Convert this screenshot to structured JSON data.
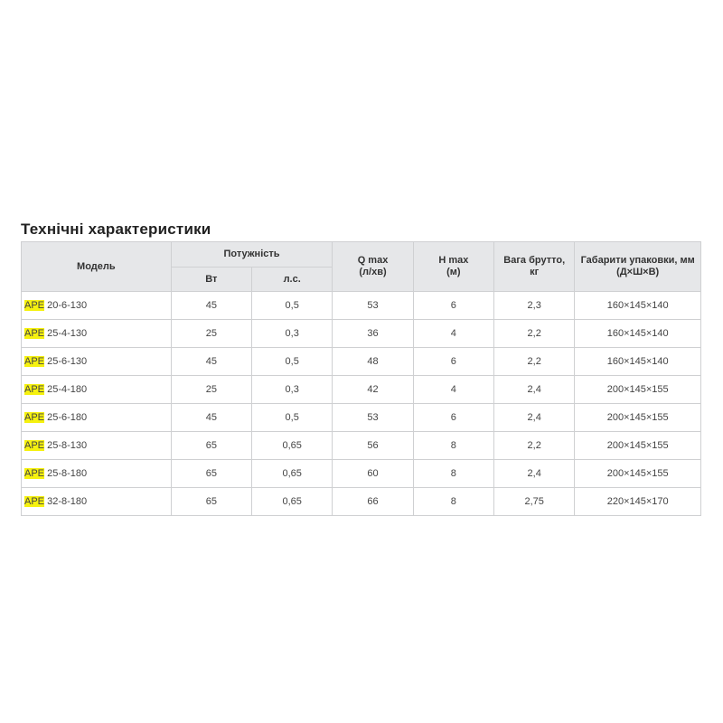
{
  "title": "Технічні характеристики",
  "headers": {
    "model": "Модель",
    "power": "Потужність",
    "watt": "Вт",
    "hp": "л.с.",
    "qmax": "Q max",
    "qmax_unit": "(л/хв)",
    "hmax": "H max",
    "hmax_unit": "(м)",
    "weight": "Вага брутто,",
    "weight_unit": "кг",
    "dims": "Габарити упаковки, мм",
    "dims_unit": "(Д×Ш×В)"
  },
  "highlight_color": "#f5f10f",
  "rows": [
    {
      "prefix": "APE",
      "model": "20-6-130",
      "w": "45",
      "hp": "0,5",
      "q": "53",
      "h": "6",
      "kg": "2,3",
      "dims": "160×145×140"
    },
    {
      "prefix": "APE",
      "model": "25-4-130",
      "w": "25",
      "hp": "0,3",
      "q": "36",
      "h": "4",
      "kg": "2,2",
      "dims": "160×145×140"
    },
    {
      "prefix": "APE",
      "model": "25-6-130",
      "w": "45",
      "hp": "0,5",
      "q": "48",
      "h": "6",
      "kg": "2,2",
      "dims": "160×145×140"
    },
    {
      "prefix": "APE",
      "model": "25-4-180",
      "w": "25",
      "hp": "0,3",
      "q": "42",
      "h": "4",
      "kg": "2,4",
      "dims": "200×145×155"
    },
    {
      "prefix": "APE",
      "model": "25-6-180",
      "w": "45",
      "hp": "0,5",
      "q": "53",
      "h": "6",
      "kg": "2,4",
      "dims": "200×145×155"
    },
    {
      "prefix": "APE",
      "model": "25-8-130",
      "w": "65",
      "hp": "0,65",
      "q": "56",
      "h": "8",
      "kg": "2,2",
      "dims": "200×145×155"
    },
    {
      "prefix": "APE",
      "model": "25-8-180",
      "w": "65",
      "hp": "0,65",
      "q": "60",
      "h": "8",
      "kg": "2,4",
      "dims": "200×145×155"
    },
    {
      "prefix": "APE",
      "model": "32-8-180",
      "w": "65",
      "hp": "0,65",
      "q": "66",
      "h": "8",
      "kg": "2,75",
      "dims": "220×145×170"
    }
  ]
}
